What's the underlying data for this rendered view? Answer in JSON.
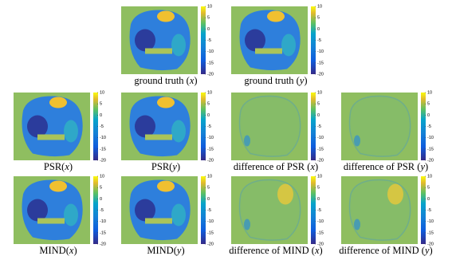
{
  "colorbar_ticks": [
    10,
    5,
    0,
    -5,
    -10,
    -15,
    -20
  ],
  "panels": [
    {
      "caption": [
        "ground truth (",
        "x",
        ")"
      ]
    },
    {
      "caption": [
        "ground truth (",
        "y",
        ")"
      ]
    },
    {
      "caption": [
        "PSR(",
        "x",
        ")"
      ]
    },
    {
      "caption": [
        "PSR(",
        "y",
        ")"
      ]
    },
    {
      "caption": [
        "difference of PSR (",
        "x",
        ")"
      ]
    },
    {
      "caption": [
        "difference of PSR (",
        "y",
        ")"
      ]
    },
    {
      "caption": [
        "MIND(",
        "x",
        ")"
      ]
    },
    {
      "caption": [
        "MIND(",
        "y",
        ")"
      ]
    },
    {
      "caption": [
        "difference of MIND (",
        "x",
        ")"
      ]
    },
    {
      "caption": [
        "difference of MIND (",
        "y",
        ")"
      ]
    }
  ]
}
